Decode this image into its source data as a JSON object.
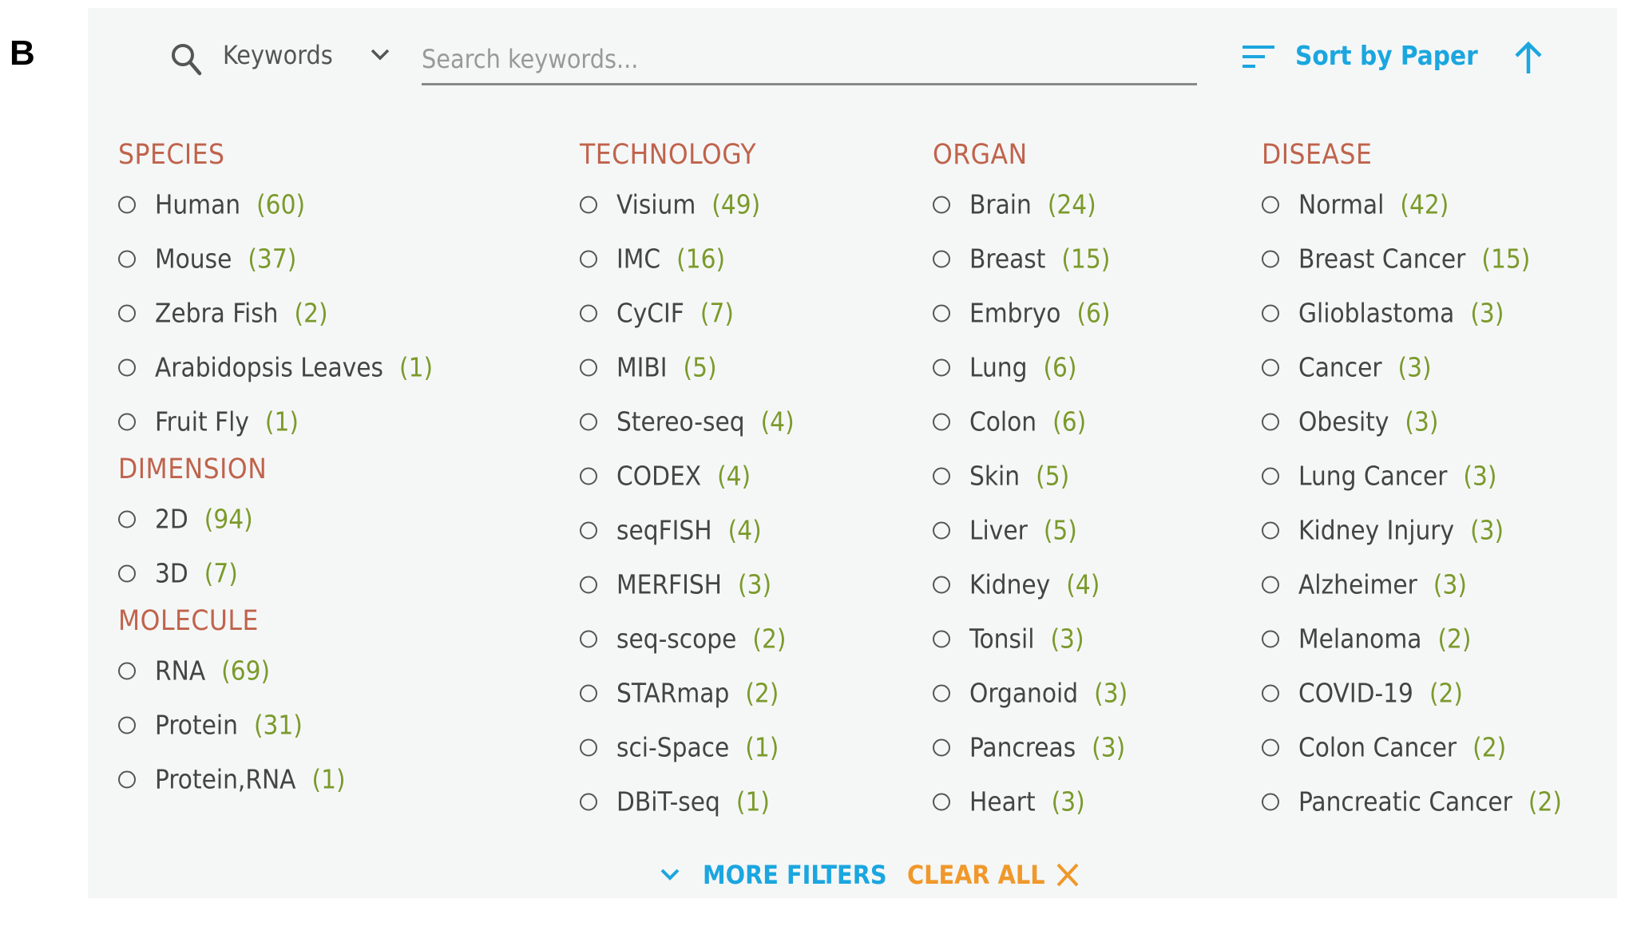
{
  "figure_label": "B",
  "search": {
    "field_selector": "Keywords",
    "placeholder": "Search keywords...",
    "sort_label": "Sort by Paper",
    "sort_direction": "ascending"
  },
  "colors": {
    "heading": "#c0634c",
    "count": "#7b9a2b",
    "accent_blue": "#1ba6df",
    "accent_orange": "#f0982a",
    "panel_bg": "#f5f7f7"
  },
  "columns": [
    {
      "groups": [
        {
          "title": "SPECIES",
          "items": [
            {
              "label": "Human",
              "count": "(60)"
            },
            {
              "label": "Mouse",
              "count": "(37)"
            },
            {
              "label": "Zebra Fish",
              "count": "(2)"
            },
            {
              "label": "Arabidopsis Leaves",
              "count": "(1)"
            },
            {
              "label": "Fruit Fly",
              "count": "(1)"
            }
          ]
        },
        {
          "title": "DIMENSION",
          "items": [
            {
              "label": "2D",
              "count": "(94)"
            },
            {
              "label": "3D",
              "count": "(7)"
            }
          ]
        },
        {
          "title": "MOLECULE",
          "items": [
            {
              "label": "RNA",
              "count": "(69)"
            },
            {
              "label": "Protein",
              "count": "(31)"
            },
            {
              "label": "Protein,RNA",
              "count": "(1)"
            }
          ]
        }
      ]
    },
    {
      "groups": [
        {
          "title": "TECHNOLOGY",
          "items": [
            {
              "label": "Visium",
              "count": "(49)"
            },
            {
              "label": "IMC",
              "count": "(16)"
            },
            {
              "label": "CyCIF",
              "count": "(7)"
            },
            {
              "label": "MIBI",
              "count": "(5)"
            },
            {
              "label": "Stereo-seq",
              "count": "(4)"
            },
            {
              "label": "CODEX",
              "count": "(4)"
            },
            {
              "label": "seqFISH",
              "count": "(4)"
            },
            {
              "label": "MERFISH",
              "count": "(3)"
            },
            {
              "label": "seq-scope",
              "count": "(2)"
            },
            {
              "label": "STARmap",
              "count": "(2)"
            },
            {
              "label": "sci-Space",
              "count": "(1)"
            },
            {
              "label": "DBiT-seq",
              "count": "(1)"
            }
          ]
        }
      ]
    },
    {
      "groups": [
        {
          "title": "ORGAN",
          "items": [
            {
              "label": "Brain",
              "count": "(24)"
            },
            {
              "label": "Breast",
              "count": "(15)"
            },
            {
              "label": "Embryo",
              "count": "(6)"
            },
            {
              "label": "Lung",
              "count": "(6)"
            },
            {
              "label": "Colon",
              "count": "(6)"
            },
            {
              "label": "Skin",
              "count": "(5)"
            },
            {
              "label": "Liver",
              "count": "(5)"
            },
            {
              "label": "Kidney",
              "count": "(4)"
            },
            {
              "label": "Tonsil",
              "count": "(3)"
            },
            {
              "label": "Organoid",
              "count": "(3)"
            },
            {
              "label": "Pancreas",
              "count": "(3)"
            },
            {
              "label": "Heart",
              "count": "(3)"
            }
          ]
        }
      ]
    },
    {
      "groups": [
        {
          "title": "DISEASE",
          "items": [
            {
              "label": "Normal",
              "count": "(42)"
            },
            {
              "label": "Breast Cancer",
              "count": "(15)"
            },
            {
              "label": "Glioblastoma",
              "count": "(3)"
            },
            {
              "label": "Cancer",
              "count": "(3)"
            },
            {
              "label": "Obesity",
              "count": "(3)"
            },
            {
              "label": "Lung Cancer",
              "count": "(3)"
            },
            {
              "label": "Kidney Injury",
              "count": "(3)"
            },
            {
              "label": "Alzheimer",
              "count": "(3)"
            },
            {
              "label": "Melanoma",
              "count": "(2)"
            },
            {
              "label": "COVID-19",
              "count": "(2)"
            },
            {
              "label": "Colon Cancer",
              "count": "(2)"
            },
            {
              "label": "Pancreatic Cancer",
              "count": "(2)"
            }
          ]
        }
      ]
    }
  ],
  "footer": {
    "more_filters": "MORE FILTERS",
    "clear_all": "CLEAR ALL"
  }
}
